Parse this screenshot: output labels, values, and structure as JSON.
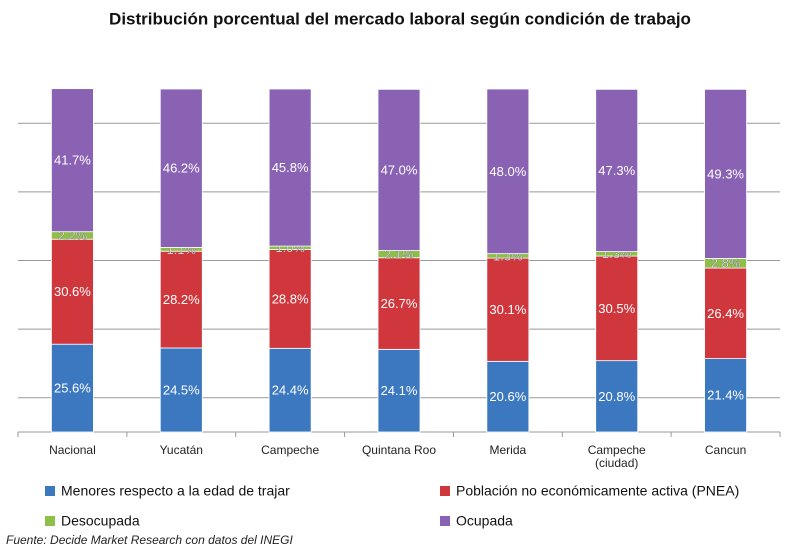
{
  "chart_data": {
    "type": "stacked_bar",
    "title": "Distribución porcentual del mercado laboral según condición de trabajo",
    "source": "Fuente: Decide Market Research con datos del INEGI",
    "categories": [
      "Nacional",
      "Yucatán",
      "Campeche",
      "Quintana Roo",
      "Merida",
      "Campeche\n(ciudad)",
      "Cancun"
    ],
    "series": [
      {
        "name": "Menores respecto a la edad de trajar",
        "color": "#3b78c0",
        "values": [
          25.6,
          24.5,
          24.4,
          24.1,
          20.6,
          20.8,
          21.4
        ],
        "value_labels": [
          "25.6%",
          "24.5%",
          "24.4%",
          "24.1%",
          "20.6%",
          "20.8%",
          "21.4%"
        ]
      },
      {
        "name": "Población no económicamente activa (PNEA)",
        "color": "#d0373d",
        "values": [
          30.6,
          28.2,
          28.8,
          26.7,
          30.1,
          30.5,
          26.4
        ],
        "value_labels": [
          "30.6%",
          "28.2%",
          "28.8%",
          "26.7%",
          "30.1%",
          "30.5%",
          "26.4%"
        ]
      },
      {
        "name": "Desocupada",
        "color": "#8dbf49",
        "values": [
          2.2,
          1.1,
          1.0,
          2.1,
          1.3,
          1.3,
          2.8
        ],
        "value_labels": [
          "2.2%",
          "1.1%",
          "1.0%",
          "2.1%",
          "1.3%",
          "1.3%",
          "2.8%"
        ]
      },
      {
        "name": "Ocupada",
        "color": "#8a62b4",
        "values": [
          41.7,
          46.2,
          45.8,
          47.0,
          48.0,
          47.3,
          49.3
        ],
        "value_labels": [
          "41.7%",
          "46.2%",
          "45.8%",
          "47.0%",
          "48.0%",
          "47.3%",
          "49.3%"
        ]
      }
    ],
    "ylim": [
      0,
      100
    ],
    "yticks": [
      10,
      30,
      50,
      70,
      90
    ],
    "grid": true
  }
}
